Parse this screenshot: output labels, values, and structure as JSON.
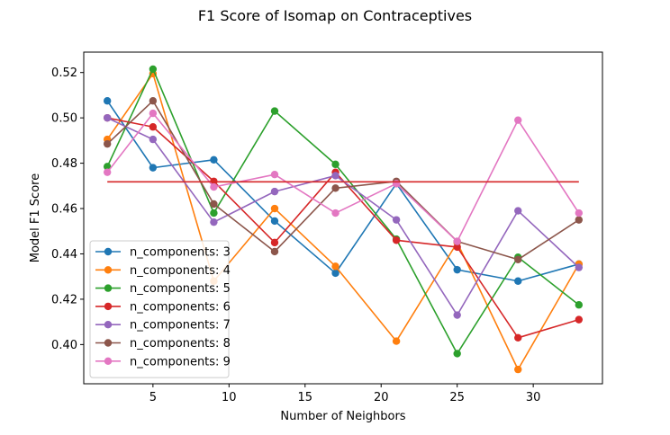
{
  "chart_data": {
    "type": "line",
    "title": "F1 Score of Isomap on Contraceptives",
    "xlabel": "Number of Neighbors",
    "ylabel": "Model F1 Score",
    "x": [
      2,
      5,
      9,
      13,
      17,
      21,
      25,
      29,
      33
    ],
    "xlim": [
      0.45,
      34.55
    ],
    "ylim": [
      0.3827,
      0.529
    ],
    "xticks": [
      5,
      10,
      15,
      20,
      25,
      30
    ],
    "xtick_labels": [
      "5",
      "10",
      "15",
      "20",
      "25",
      "30"
    ],
    "yticks": [
      0.4,
      0.42,
      0.44,
      0.46,
      0.48,
      0.5,
      0.52
    ],
    "ytick_labels": [
      "0.40",
      "0.42",
      "0.44",
      "0.46",
      "0.48",
      "0.50",
      "0.52"
    ],
    "grid": false,
    "legend_position": "lower-left",
    "series": [
      {
        "name": "n_components: 3",
        "color": "#1f77b4",
        "values": [
          0.5075,
          0.478,
          0.4815,
          0.4545,
          0.4315,
          0.471,
          0.433,
          0.428,
          0.4355
        ]
      },
      {
        "name": "n_components: 4",
        "color": "#ff7f0e",
        "values": [
          0.4905,
          0.5195,
          0.428,
          0.46,
          0.4345,
          0.4015,
          0.445,
          0.389,
          0.4355
        ]
      },
      {
        "name": "n_components: 5",
        "color": "#2ca02c",
        "values": [
          0.4785,
          0.5215,
          0.458,
          0.503,
          0.4795,
          0.4465,
          0.396,
          0.4385,
          0.4175
        ]
      },
      {
        "name": "n_components: 6",
        "color": "#d62728",
        "values": [
          0.5,
          0.496,
          0.472,
          0.445,
          0.476,
          0.446,
          0.443,
          0.403,
          0.411
        ]
      },
      {
        "name": "n_components: 7",
        "color": "#9467bd",
        "values": [
          0.5,
          0.4905,
          0.454,
          0.4675,
          0.4745,
          0.455,
          0.413,
          0.459,
          0.434
        ]
      },
      {
        "name": "n_components: 8",
        "color": "#8c564b",
        "values": [
          0.4885,
          0.5075,
          0.462,
          0.441,
          0.469,
          0.472,
          0.4455,
          0.4375,
          0.455
        ]
      },
      {
        "name": "n_components: 9",
        "color": "#e377c2",
        "values": [
          0.476,
          0.502,
          0.4695,
          0.475,
          0.458,
          0.471,
          0.4455,
          0.499,
          0.458
        ]
      }
    ],
    "reference_line": {
      "color": "#d62728",
      "y": 0.4718,
      "x_range": [
        2,
        33
      ]
    }
  }
}
